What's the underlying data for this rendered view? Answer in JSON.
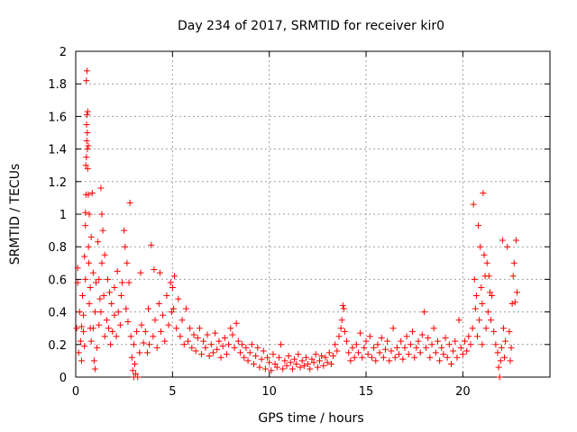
{
  "chart_data": {
    "type": "scatter",
    "title": "Day 234 of 2017, SRMTID for receiver kir0",
    "xlabel": "GPS time / hours",
    "ylabel": "SRMTID / TECUs",
    "xlim": [
      0,
      24.5
    ],
    "ylim": [
      0,
      2
    ],
    "xticks": [
      "0",
      "5",
      "10",
      "15",
      "20"
    ],
    "yticks": [
      "0",
      "0.2",
      "0.4",
      "0.6",
      "0.8",
      "1",
      "1.2",
      "1.4",
      "1.6",
      "1.8",
      "2"
    ],
    "grid": true,
    "marker": "+",
    "series": [
      {
        "name": "kir0",
        "color": "#ff0000",
        "points": [
          [
            0.05,
            0.3
          ],
          [
            0.1,
            0.58
          ],
          [
            0.1,
            0.67
          ],
          [
            0.15,
            0.15
          ],
          [
            0.2,
            0.4
          ],
          [
            0.25,
            0.22
          ],
          [
            0.3,
            0.31
          ],
          [
            0.3,
            0.1
          ],
          [
            0.35,
            0.5
          ],
          [
            0.4,
            0.28
          ],
          [
            0.4,
            0.38
          ],
          [
            0.45,
            0.74
          ],
          [
            0.45,
            0.19
          ],
          [
            0.5,
            0.93
          ],
          [
            0.5,
            1.01
          ],
          [
            0.5,
            0.6
          ],
          [
            0.52,
            1.3
          ],
          [
            0.53,
            1.12
          ],
          [
            0.55,
            1.35
          ],
          [
            0.55,
            1.82
          ],
          [
            0.56,
            1.55
          ],
          [
            0.57,
            1.45
          ],
          [
            0.58,
            1.61
          ],
          [
            0.58,
            1.88
          ],
          [
            0.6,
            1.5
          ],
          [
            0.6,
            1.4
          ],
          [
            0.62,
            1.63
          ],
          [
            0.62,
            1.28
          ],
          [
            0.65,
            1.42
          ],
          [
            0.65,
            1.12
          ],
          [
            0.66,
            0.8
          ],
          [
            0.68,
            0.7
          ],
          [
            0.7,
            1.0
          ],
          [
            0.7,
            0.45
          ],
          [
            0.75,
            0.3
          ],
          [
            0.75,
            0.55
          ],
          [
            0.8,
            0.86
          ],
          [
            0.8,
            0.22
          ],
          [
            0.85,
            1.13
          ],
          [
            0.9,
            0.3
          ],
          [
            0.9,
            0.64
          ],
          [
            0.95,
            0.1
          ],
          [
            1.0,
            0.4
          ],
          [
            1.0,
            0.05
          ],
          [
            1.05,
            0.58
          ],
          [
            1.1,
            0.18
          ],
          [
            1.15,
            0.83
          ],
          [
            1.2,
            0.6
          ],
          [
            1.2,
            0.32
          ],
          [
            1.25,
            0.48
          ],
          [
            1.3,
            1.16
          ],
          [
            1.3,
            0.4
          ],
          [
            1.35,
            1.0
          ],
          [
            1.35,
            0.7
          ],
          [
            1.4,
            0.9
          ],
          [
            1.45,
            0.5
          ],
          [
            1.5,
            0.75
          ],
          [
            1.5,
            0.25
          ],
          [
            1.6,
            0.35
          ],
          [
            1.65,
            0.6
          ],
          [
            1.7,
            0.3
          ],
          [
            1.75,
            0.52
          ],
          [
            1.8,
            0.2
          ],
          [
            1.85,
            0.45
          ],
          [
            1.9,
            0.28
          ],
          [
            2.0,
            0.38
          ],
          [
            2.0,
            0.55
          ],
          [
            2.1,
            0.25
          ],
          [
            2.15,
            0.65
          ],
          [
            2.2,
            0.4
          ],
          [
            2.3,
            0.32
          ],
          [
            2.35,
            0.5
          ],
          [
            2.4,
            0.58
          ],
          [
            2.5,
            0.9
          ],
          [
            2.55,
            0.8
          ],
          [
            2.6,
            0.42
          ],
          [
            2.65,
            0.7
          ],
          [
            2.7,
            0.34
          ],
          [
            2.75,
            0.58
          ],
          [
            2.8,
            1.07
          ],
          [
            2.85,
            0.25
          ],
          [
            2.9,
            0.12
          ],
          [
            2.95,
            0.04
          ],
          [
            3.0,
            0.0
          ],
          [
            3.0,
            0.2
          ],
          [
            3.05,
            0.08
          ],
          [
            3.1,
            0.02
          ],
          [
            3.15,
            0.28
          ],
          [
            3.2,
            0.0
          ],
          [
            3.3,
            0.15
          ],
          [
            3.35,
            0.64
          ],
          [
            3.4,
            0.32
          ],
          [
            3.5,
            0.21
          ],
          [
            3.6,
            0.28
          ],
          [
            3.7,
            0.15
          ],
          [
            3.75,
            0.42
          ],
          [
            3.8,
            0.2
          ],
          [
            3.9,
            0.81
          ],
          [
            4.0,
            0.25
          ],
          [
            4.05,
            0.66
          ],
          [
            4.1,
            0.35
          ],
          [
            4.2,
            0.18
          ],
          [
            4.3,
            0.45
          ],
          [
            4.35,
            0.64
          ],
          [
            4.4,
            0.28
          ],
          [
            4.5,
            0.38
          ],
          [
            4.6,
            0.22
          ],
          [
            4.7,
            0.5
          ],
          [
            4.8,
            0.32
          ],
          [
            4.9,
            0.58
          ],
          [
            4.95,
            0.4
          ],
          [
            5.0,
            0.55
          ],
          [
            5.05,
            0.42
          ],
          [
            5.1,
            0.62
          ],
          [
            5.2,
            0.3
          ],
          [
            5.3,
            0.48
          ],
          [
            5.4,
            0.25
          ],
          [
            5.5,
            0.35
          ],
          [
            5.6,
            0.2
          ],
          [
            5.7,
            0.42
          ],
          [
            5.8,
            0.22
          ],
          [
            5.9,
            0.3
          ],
          [
            6.0,
            0.18
          ],
          [
            6.1,
            0.26
          ],
          [
            6.2,
            0.16
          ],
          [
            6.3,
            0.24
          ],
          [
            6.4,
            0.3
          ],
          [
            6.5,
            0.14
          ],
          [
            6.6,
            0.22
          ],
          [
            6.7,
            0.18
          ],
          [
            6.8,
            0.26
          ],
          [
            6.9,
            0.13
          ],
          [
            7.0,
            0.2
          ],
          [
            7.1,
            0.15
          ],
          [
            7.2,
            0.27
          ],
          [
            7.3,
            0.17
          ],
          [
            7.4,
            0.22
          ],
          [
            7.5,
            0.12
          ],
          [
            7.6,
            0.19
          ],
          [
            7.7,
            0.24
          ],
          [
            7.8,
            0.14
          ],
          [
            7.9,
            0.2
          ],
          [
            8.0,
            0.3
          ],
          [
            8.1,
            0.26
          ],
          [
            8.2,
            0.18
          ],
          [
            8.3,
            0.33
          ],
          [
            8.4,
            0.22
          ],
          [
            8.5,
            0.15
          ],
          [
            8.6,
            0.2
          ],
          [
            8.7,
            0.12
          ],
          [
            8.8,
            0.18
          ],
          [
            8.9,
            0.1
          ],
          [
            9.0,
            0.15
          ],
          [
            9.1,
            0.2
          ],
          [
            9.2,
            0.08
          ],
          [
            9.3,
            0.13
          ],
          [
            9.4,
            0.18
          ],
          [
            9.5,
            0.06
          ],
          [
            9.6,
            0.11
          ],
          [
            9.7,
            0.16
          ],
          [
            9.8,
            0.05
          ],
          [
            9.9,
            0.12
          ],
          [
            10.0,
            0.09
          ],
          [
            10.1,
            0.04
          ],
          [
            10.2,
            0.14
          ],
          [
            10.3,
            0.08
          ],
          [
            10.4,
            0.06
          ],
          [
            10.5,
            0.12
          ],
          [
            10.6,
            0.2
          ],
          [
            10.7,
            0.05
          ],
          [
            10.8,
            0.1
          ],
          [
            10.9,
            0.07
          ],
          [
            11.0,
            0.13
          ],
          [
            11.1,
            0.09
          ],
          [
            11.2,
            0.05
          ],
          [
            11.3,
            0.11
          ],
          [
            11.4,
            0.08
          ],
          [
            11.5,
            0.14
          ],
          [
            11.6,
            0.06
          ],
          [
            11.7,
            0.1
          ],
          [
            11.8,
            0.07
          ],
          [
            11.9,
            0.12
          ],
          [
            12.0,
            0.08
          ],
          [
            12.1,
            0.05
          ],
          [
            12.2,
            0.11
          ],
          [
            12.3,
            0.09
          ],
          [
            12.4,
            0.14
          ],
          [
            12.5,
            0.06
          ],
          [
            12.6,
            0.1
          ],
          [
            12.7,
            0.13
          ],
          [
            12.8,
            0.07
          ],
          [
            12.9,
            0.12
          ],
          [
            13.0,
            0.09
          ],
          [
            13.1,
            0.15
          ],
          [
            13.2,
            0.08
          ],
          [
            13.3,
            0.13
          ],
          [
            13.4,
            0.2
          ],
          [
            13.5,
            0.16
          ],
          [
            13.6,
            0.25
          ],
          [
            13.7,
            0.3
          ],
          [
            13.75,
            0.35
          ],
          [
            13.8,
            0.44
          ],
          [
            13.85,
            0.42
          ],
          [
            13.9,
            0.28
          ],
          [
            14.0,
            0.22
          ],
          [
            14.1,
            0.15
          ],
          [
            14.2,
            0.1
          ],
          [
            14.3,
            0.18
          ],
          [
            14.4,
            0.12
          ],
          [
            14.5,
            0.2
          ],
          [
            14.6,
            0.15
          ],
          [
            14.7,
            0.27
          ],
          [
            14.8,
            0.12
          ],
          [
            14.9,
            0.18
          ],
          [
            15.0,
            0.22
          ],
          [
            15.1,
            0.14
          ],
          [
            15.2,
            0.25
          ],
          [
            15.3,
            0.12
          ],
          [
            15.4,
            0.18
          ],
          [
            15.5,
            0.1
          ],
          [
            15.6,
            0.2
          ],
          [
            15.7,
            0.15
          ],
          [
            15.8,
            0.24
          ],
          [
            15.9,
            0.12
          ],
          [
            16.0,
            0.17
          ],
          [
            16.1,
            0.22
          ],
          [
            16.2,
            0.1
          ],
          [
            16.3,
            0.16
          ],
          [
            16.4,
            0.3
          ],
          [
            16.5,
            0.12
          ],
          [
            16.6,
            0.18
          ],
          [
            16.7,
            0.14
          ],
          [
            16.8,
            0.22
          ],
          [
            16.9,
            0.11
          ],
          [
            17.0,
            0.18
          ],
          [
            17.1,
            0.25
          ],
          [
            17.2,
            0.14
          ],
          [
            17.3,
            0.2
          ],
          [
            17.4,
            0.28
          ],
          [
            17.5,
            0.12
          ],
          [
            17.6,
            0.18
          ],
          [
            17.7,
            0.22
          ],
          [
            17.8,
            0.15
          ],
          [
            17.9,
            0.26
          ],
          [
            18.0,
            0.4
          ],
          [
            18.1,
            0.18
          ],
          [
            18.2,
            0.24
          ],
          [
            18.3,
            0.12
          ],
          [
            18.4,
            0.2
          ],
          [
            18.5,
            0.3
          ],
          [
            18.6,
            0.15
          ],
          [
            18.7,
            0.22
          ],
          [
            18.8,
            0.1
          ],
          [
            18.9,
            0.18
          ],
          [
            19.0,
            0.14
          ],
          [
            19.1,
            0.24
          ],
          [
            19.2,
            0.12
          ],
          [
            19.3,
            0.2
          ],
          [
            19.4,
            0.08
          ],
          [
            19.5,
            0.16
          ],
          [
            19.6,
            0.22
          ],
          [
            19.7,
            0.12
          ],
          [
            19.8,
            0.35
          ],
          [
            19.9,
            0.18
          ],
          [
            20.0,
            0.14
          ],
          [
            20.1,
            0.22
          ],
          [
            20.2,
            0.16
          ],
          [
            20.3,
            0.25
          ],
          [
            20.4,
            0.2
          ],
          [
            20.5,
            0.3
          ],
          [
            20.55,
            1.06
          ],
          [
            20.6,
            0.6
          ],
          [
            20.65,
            0.42
          ],
          [
            20.7,
            0.5
          ],
          [
            20.75,
            0.25
          ],
          [
            20.8,
            0.93
          ],
          [
            20.85,
            0.35
          ],
          [
            20.9,
            0.8
          ],
          [
            20.95,
            0.55
          ],
          [
            21.0,
            0.45
          ],
          [
            21.0,
            0.2
          ],
          [
            21.05,
            1.13
          ],
          [
            21.1,
            0.75
          ],
          [
            21.15,
            0.62
          ],
          [
            21.2,
            0.3
          ],
          [
            21.25,
            0.7
          ],
          [
            21.3,
            0.4
          ],
          [
            21.35,
            0.62
          ],
          [
            21.4,
            0.52
          ],
          [
            21.45,
            0.35
          ],
          [
            21.5,
            0.5
          ],
          [
            21.6,
            0.28
          ],
          [
            21.7,
            0.2
          ],
          [
            21.8,
            0.15
          ],
          [
            21.85,
            0.06
          ],
          [
            21.9,
            0.0
          ],
          [
            21.95,
            0.1
          ],
          [
            22.0,
            0.18
          ],
          [
            22.05,
            0.84
          ],
          [
            22.1,
            0.3
          ],
          [
            22.15,
            0.12
          ],
          [
            22.2,
            0.22
          ],
          [
            22.3,
            0.8
          ],
          [
            22.4,
            0.28
          ],
          [
            22.45,
            0.1
          ],
          [
            22.5,
            0.18
          ],
          [
            22.55,
            0.45
          ],
          [
            22.6,
            0.62
          ],
          [
            22.65,
            0.7
          ],
          [
            22.7,
            0.46
          ],
          [
            22.75,
            0.84
          ],
          [
            22.8,
            0.52
          ]
        ]
      }
    ]
  }
}
